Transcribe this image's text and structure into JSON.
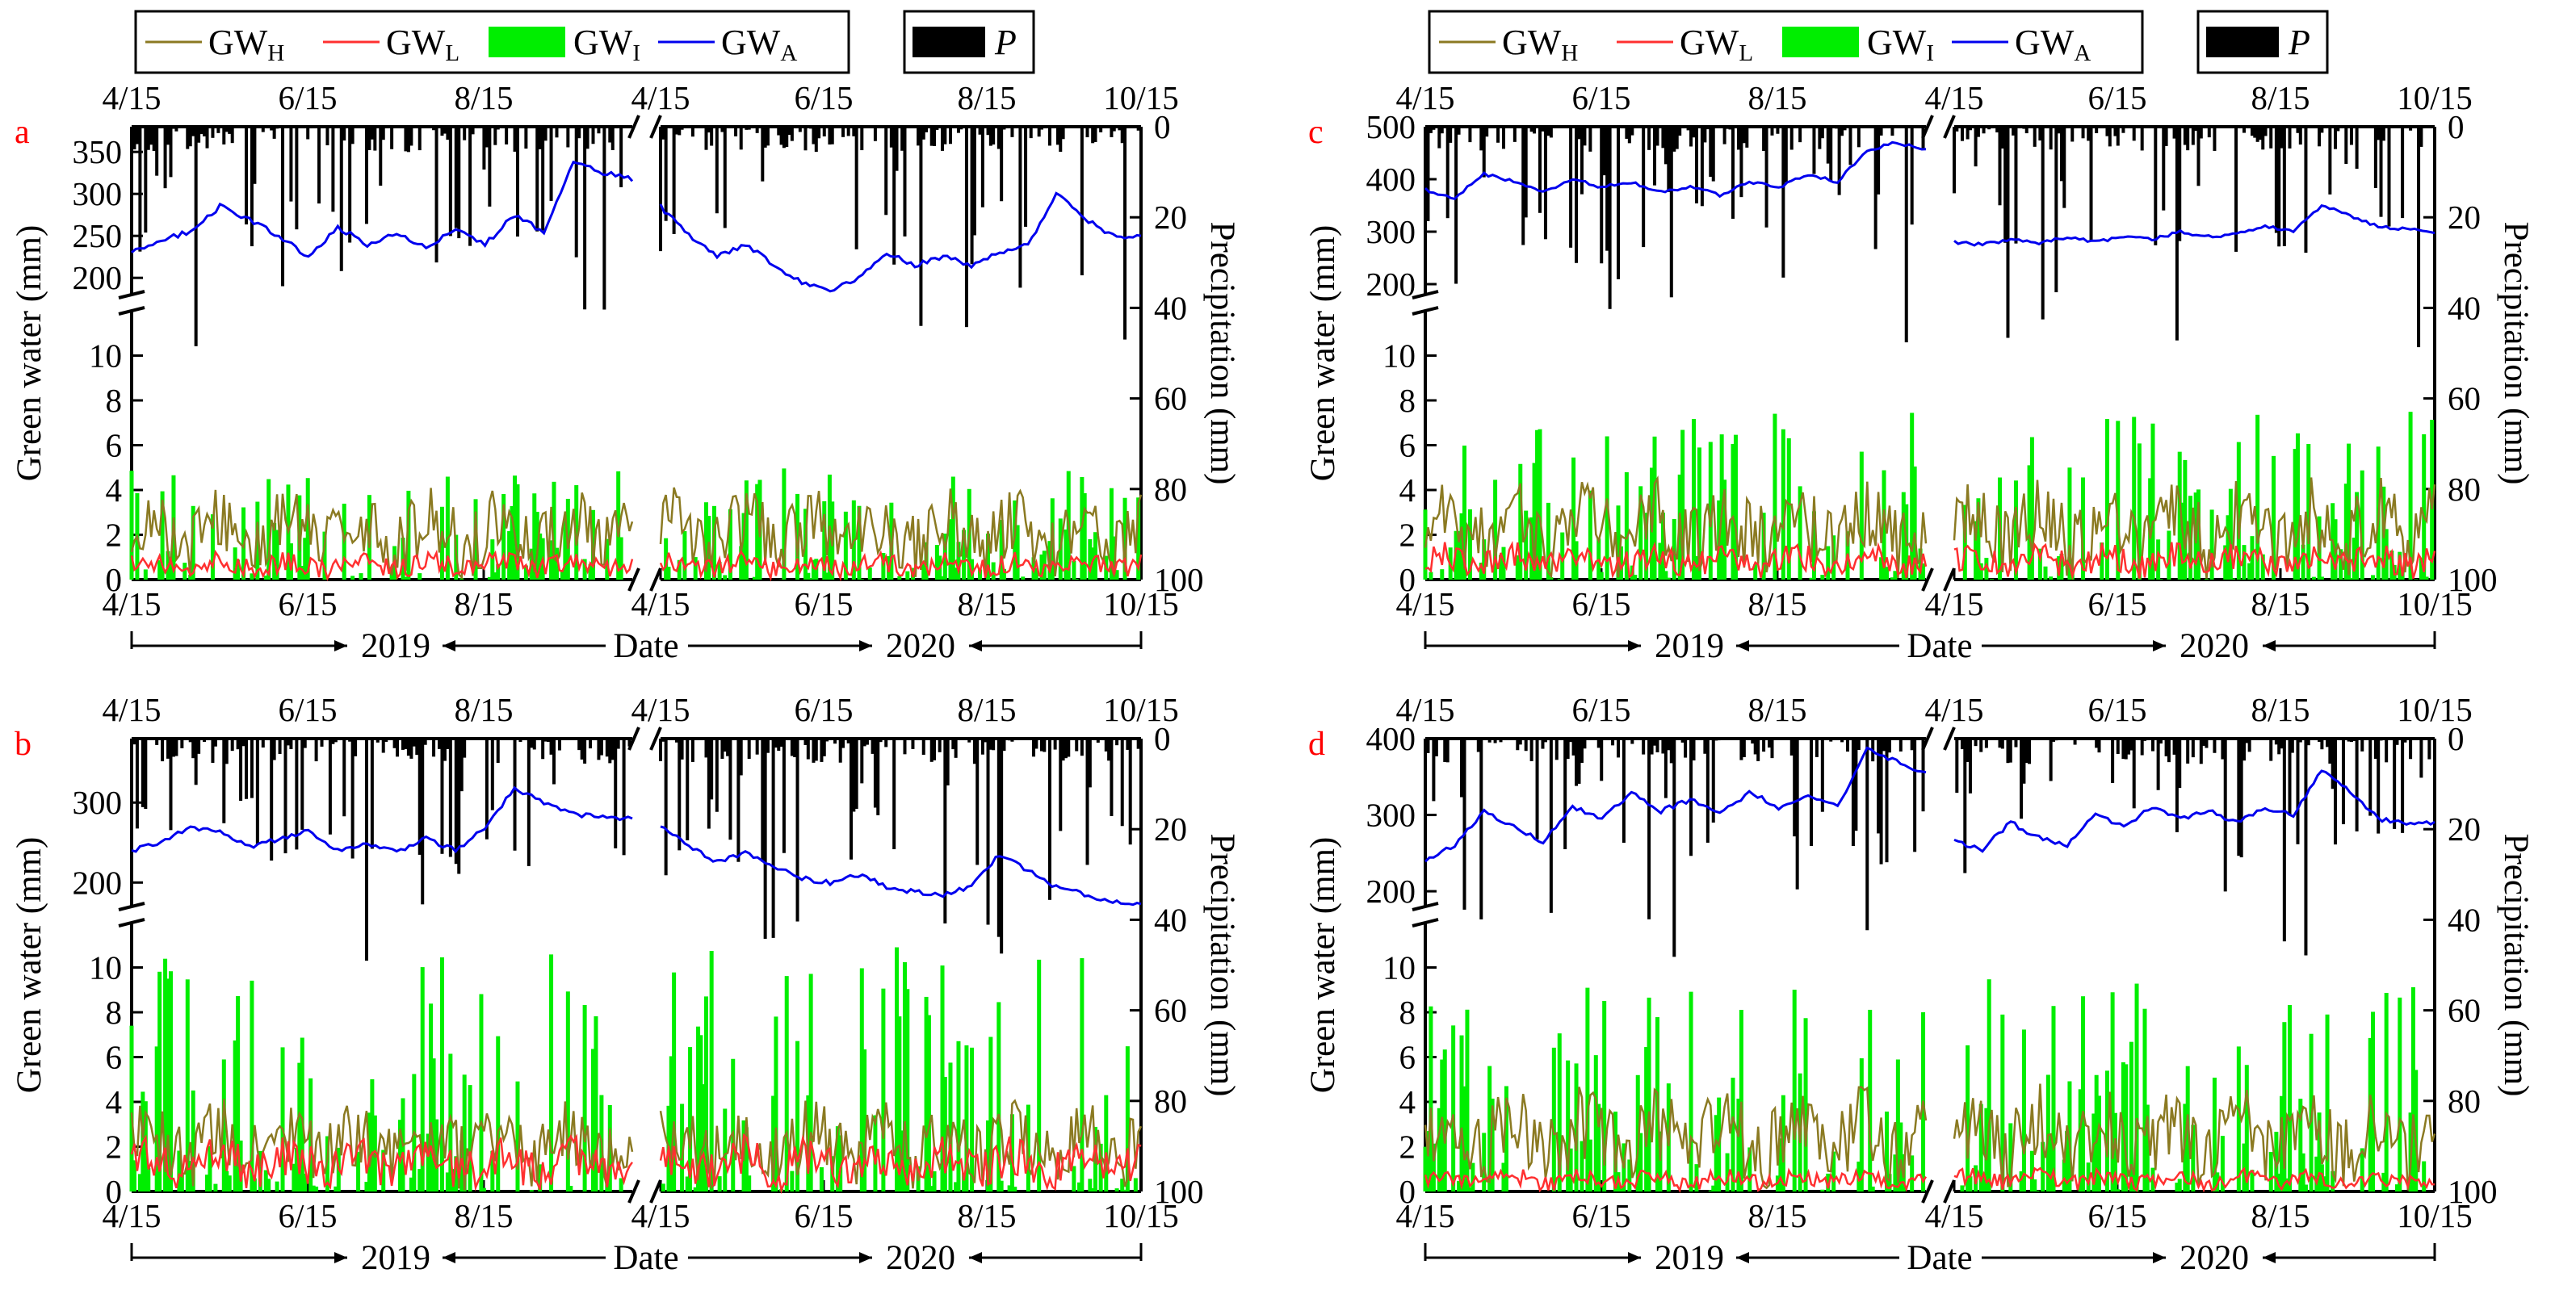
{
  "legend": {
    "gwh": {
      "base": "GW",
      "sub": "H",
      "color": "#8b7a22"
    },
    "gwl": {
      "base": "GW",
      "sub": "L",
      "color": "#ff3030"
    },
    "gwi": {
      "base": "GW",
      "sub": "I",
      "color": "#00ee00"
    },
    "gwa": {
      "base": "GW",
      "sub": "A",
      "color": "#0000ee"
    },
    "p": {
      "label": "P",
      "color": "#000000"
    }
  },
  "axis_labels": {
    "y_left": "Green water (mm)",
    "y_right": "Precipitation (mm)",
    "x": "Date",
    "year1": "2019",
    "year2": "2020"
  },
  "x_ticks": [
    "4/15",
    "6/15",
    "8/15",
    "4/15",
    "6/15",
    "8/15",
    "10/15"
  ],
  "chart_data": [
    {
      "type": "line",
      "panel": "a",
      "title": "",
      "xlabel": "Date",
      "ylabel": "Green water (mm)",
      "y2label": "Precipitation (mm)",
      "lower_yticks": [
        0,
        2,
        4,
        6,
        8,
        10
      ],
      "upper_yticks": [
        200,
        250,
        300,
        350
      ],
      "upper_ylim": [
        180,
        380
      ],
      "lower_ylim": [
        0,
        12
      ],
      "precip_ticks": [
        0,
        20,
        40,
        60,
        80,
        100
      ],
      "gwa_2019": [
        230,
        245,
        255,
        285,
        270,
        250,
        225,
        260,
        240,
        255,
        235,
        260,
        240,
        275,
        255,
        340,
        325,
        318
      ],
      "gwa_2020": [
        285,
        250,
        225,
        240,
        215,
        195,
        185,
        200,
        230,
        215,
        225,
        215,
        230,
        240,
        300,
        270,
        250,
        248
      ],
      "gwh_level": 2.0,
      "gwl_level": 0.6,
      "gwi_max": 5.0
    },
    {
      "type": "line",
      "panel": "b",
      "title": "",
      "xlabel": "Date",
      "ylabel": "Green water (mm)",
      "y2label": "Precipitation (mm)",
      "lower_yticks": [
        0,
        2,
        4,
        6,
        8,
        10
      ],
      "upper_yticks": [
        200,
        300
      ],
      "upper_ylim": [
        170,
        380
      ],
      "lower_ylim": [
        0,
        12
      ],
      "precip_ticks": [
        0,
        20,
        40,
        60,
        80,
        100
      ],
      "gwa_2019": [
        240,
        250,
        270,
        262,
        245,
        255,
        265,
        240,
        250,
        238,
        255,
        240,
        268,
        318,
        300,
        285,
        282,
        280
      ],
      "gwa_2020": [
        270,
        245,
        225,
        238,
        220,
        205,
        200,
        210,
        195,
        188,
        185,
        195,
        235,
        215,
        195,
        185,
        175,
        172
      ],
      "gwh_level": 2.0,
      "gwl_level": 1.2,
      "gwi_max": 11.0
    },
    {
      "type": "line",
      "panel": "c",
      "title": "",
      "xlabel": "Date",
      "ylabel": "Green water (mm)",
      "y2label": "Precipitation (mm)",
      "lower_yticks": [
        0,
        2,
        4,
        6,
        8,
        10
      ],
      "upper_yticks": [
        200,
        300,
        400,
        500
      ],
      "upper_ylim": [
        180,
        500
      ],
      "lower_ylim": [
        0,
        12
      ],
      "precip_ticks": [
        0,
        20,
        40,
        60,
        80,
        100
      ],
      "gwa_2019": [
        380,
        365,
        410,
        395,
        375,
        400,
        385,
        395,
        375,
        385,
        370,
        395,
        385,
        410,
        395,
        455,
        470,
        455
      ],
      "gwa_2020": [
        280,
        275,
        285,
        278,
        290,
        280,
        292,
        285,
        300,
        290,
        295,
        310,
        300,
        350,
        330,
        310,
        305,
        300
      ],
      "gwh_level": 2.2,
      "gwl_level": 0.8,
      "gwi_max": 7.5
    },
    {
      "type": "line",
      "panel": "d",
      "title": "",
      "xlabel": "Date",
      "ylabel": "Green water (mm)",
      "y2label": "Precipitation (mm)",
      "lower_yticks": [
        0,
        2,
        4,
        6,
        8,
        10
      ],
      "upper_yticks": [
        200,
        300,
        400
      ],
      "upper_ylim": [
        180,
        400
      ],
      "lower_ylim": [
        0,
        12
      ],
      "precip_ticks": [
        0,
        20,
        40,
        60,
        80,
        100
      ],
      "gwa_2019": [
        240,
        260,
        305,
        285,
        265,
        310,
        295,
        330,
        305,
        320,
        300,
        330,
        310,
        325,
        310,
        385,
        370,
        355
      ],
      "gwa_2020": [
        265,
        255,
        290,
        270,
        260,
        300,
        285,
        310,
        295,
        305,
        290,
        310,
        300,
        360,
        330,
        295,
        290,
        288
      ],
      "gwh_level": 2.3,
      "gwl_level": 0.5,
      "gwi_max": 9.5
    }
  ]
}
